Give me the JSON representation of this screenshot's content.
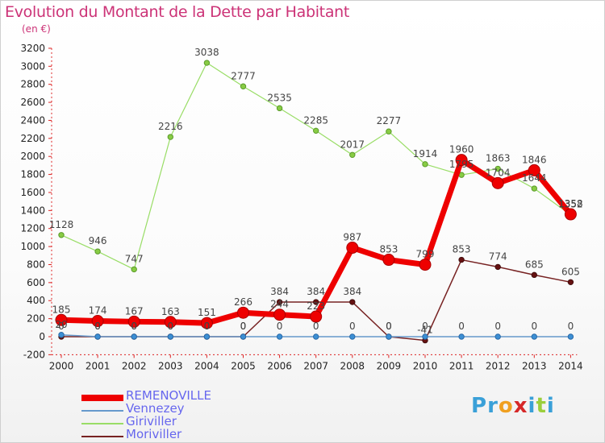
{
  "header": {
    "title": "Evolution du Montant de la Dette par Habitant",
    "subtitle": "(en €)"
  },
  "logo": {
    "letters": [
      "P",
      "r",
      "o",
      "x",
      "i",
      "t",
      "i"
    ],
    "colors": [
      "#3aa0d8",
      "#3aa0d8",
      "#f0a020",
      "#d62828",
      "#3aa0d8",
      "#9bcf3c",
      "#3aa0d8"
    ]
  },
  "chart_data": {
    "type": "line",
    "x": [
      "2000",
      "2001",
      "2002",
      "2003",
      "2004",
      "2005",
      "2006",
      "2007",
      "2008",
      "2009",
      "2010",
      "2011",
      "2012",
      "2013",
      "2014"
    ],
    "ylim": [
      -200,
      3200
    ],
    "yticks": [
      -200,
      0,
      200,
      400,
      600,
      800,
      1000,
      1200,
      1400,
      1600,
      1800,
      2000,
      2200,
      2400,
      2600,
      2800,
      3000,
      3200
    ],
    "grid": false,
    "legend_position": "bottom-left",
    "series": [
      {
        "name": "REMENOVILLE",
        "color": "#ee0000",
        "values": [
          185,
          174,
          167,
          163,
          151,
          266,
          244,
          223,
          987,
          853,
          799,
          1960,
          1704,
          1846,
          1358
        ],
        "labels": [
          "185",
          "174",
          "167",
          "163",
          "151",
          "266",
          "244",
          "223",
          "987",
          "853",
          "799",
          "1960",
          "1704",
          "1846",
          "1358"
        ]
      },
      {
        "name": "Vennezey",
        "color": "#6699cc",
        "values": [
          20,
          0,
          0,
          0,
          0,
          0,
          0,
          0,
          0,
          0,
          0,
          0,
          0,
          0,
          0
        ],
        "labels": [
          "20",
          "0",
          "0",
          "0",
          "0",
          "0",
          "0",
          "0",
          "0",
          "0",
          "0",
          "0",
          "0",
          "0",
          "0"
        ]
      },
      {
        "name": "Giriviller",
        "color": "#99dd66",
        "values": [
          1128,
          946,
          747,
          2216,
          3038,
          2777,
          2535,
          2285,
          2017,
          2277,
          1914,
          1795,
          1863,
          1644,
          1352
        ],
        "labels": [
          "1128",
          "946",
          "747",
          "2216",
          "3038",
          "2777",
          "2535",
          "2285",
          "2017",
          "2277",
          "1914",
          "1795",
          "1863",
          "1644",
          "1352"
        ]
      },
      {
        "name": "Moriviller",
        "color": "#772222",
        "values": [
          0,
          0,
          0,
          0,
          0,
          0,
          384,
          384,
          384,
          0,
          -41,
          853,
          774,
          685,
          605
        ],
        "labels": [
          "0",
          "0",
          "0",
          "0",
          "0",
          "0",
          "384",
          "384",
          "384",
          "0",
          "-41",
          "853",
          "774",
          "685",
          "605"
        ]
      }
    ]
  }
}
